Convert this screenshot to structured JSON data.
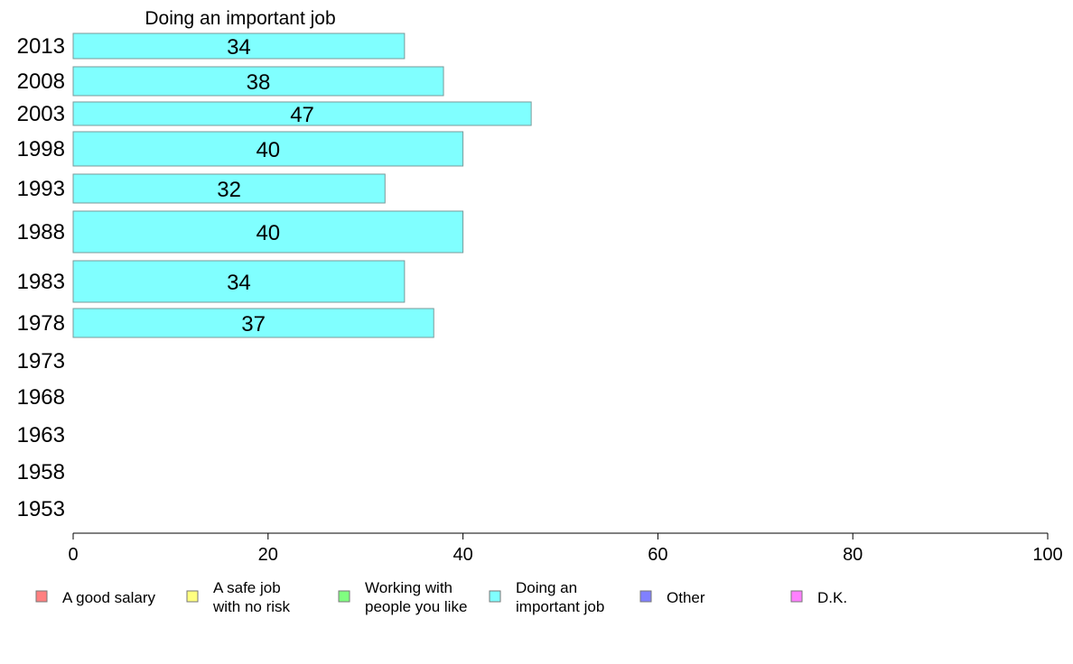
{
  "chart_data": {
    "type": "bar",
    "orientation": "horizontal",
    "title": "Doing an important job",
    "categories": [
      "2013",
      "2008",
      "2003",
      "1998",
      "1993",
      "1988",
      "1983",
      "1978",
      "1973",
      "1968",
      "1963",
      "1958",
      "1953"
    ],
    "values": [
      34,
      38,
      47,
      40,
      32,
      40,
      34,
      37,
      null,
      null,
      null,
      null,
      null
    ],
    "xlim": [
      0,
      100
    ],
    "xticks": [
      "0",
      "20",
      "40",
      "60",
      "80",
      "100"
    ],
    "grid": false,
    "bar_color": "#80ffff",
    "legend_position": "bottom",
    "legend": [
      {
        "lines": [
          "A good salary"
        ],
        "color": "#ff8080"
      },
      {
        "lines": [
          "A safe job",
          "with no risk"
        ],
        "color": "#ffff80"
      },
      {
        "lines": [
          "Working with",
          "people you like"
        ],
        "color": "#80ff80"
      },
      {
        "lines": [
          "Doing an",
          "important job"
        ],
        "color": "#80ffff"
      },
      {
        "lines": [
          "Other"
        ],
        "color": "#8080ff"
      },
      {
        "lines": [
          "D.K."
        ],
        "color": "#ff80ff"
      }
    ]
  }
}
